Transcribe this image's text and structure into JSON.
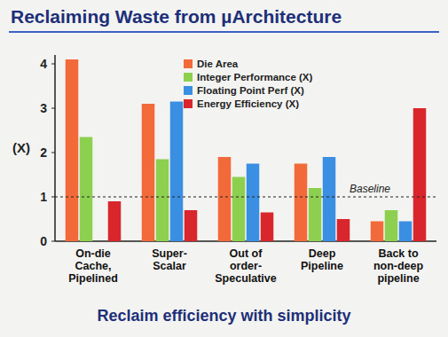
{
  "chart_data": {
    "type": "bar",
    "title": "Reclaiming Waste from µArchitecture",
    "subtitle": "Reclaim efficiency with simplicity",
    "y_label": "(X)",
    "categories": [
      "On-die Cache, Pipelined",
      "Super-Scalar",
      "Out of order-Speculative",
      "Deep Pipeline",
      "Back to non-deep pipeline"
    ],
    "series": [
      {
        "name": "Die Area",
        "color": "#f26a3a",
        "values": [
          4.1,
          3.1,
          1.9,
          1.75,
          0.45
        ]
      },
      {
        "name": "Integer Performance (X)",
        "color": "#8dcf4f",
        "values": [
          2.35,
          1.85,
          1.45,
          1.2,
          0.7
        ]
      },
      {
        "name": "Floating Point Perf (X)",
        "color": "#3b8fe2",
        "values": [
          null,
          3.15,
          1.75,
          1.9,
          0.45
        ]
      },
      {
        "name": "Energy Efficiency (X)",
        "color": "#d8262c",
        "values": [
          0.9,
          0.7,
          0.65,
          0.5,
          3.0
        ]
      }
    ],
    "annotations": [
      {
        "text": "Baseline",
        "y": 1
      }
    ],
    "ylim": [
      0,
      4.2
    ],
    "yticks": [
      0,
      1,
      2,
      3,
      4
    ],
    "grid": false,
    "legend": "top"
  }
}
